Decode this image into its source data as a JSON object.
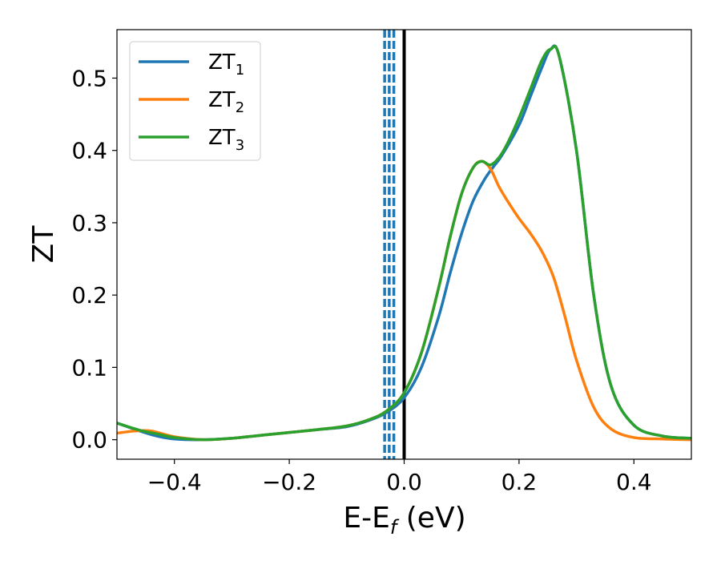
{
  "chart_data": {
    "type": "line",
    "xlabel": "E-E",
    "xlabel_sub": "f",
    "xlabel_unit": " (eV)",
    "ylabel": "ZT",
    "xlim": [
      -0.5,
      0.5
    ],
    "ylim": [
      -0.027,
      0.567
    ],
    "xticks": [
      -0.4,
      -0.2,
      0.0,
      0.2,
      0.4
    ],
    "xtick_labels": [
      "−0.4",
      "−0.2",
      "0.0",
      "0.2",
      "0.4"
    ],
    "yticks": [
      0.0,
      0.1,
      0.2,
      0.3,
      0.4,
      0.5
    ],
    "ytick_labels": [
      "0.0",
      "0.1",
      "0.2",
      "0.3",
      "0.4",
      "0.5"
    ],
    "grid": false,
    "legend_position": "top-left",
    "vertical_lines": [
      {
        "x": 0.0,
        "style": "solid",
        "color": "#000000"
      },
      {
        "x": -0.034,
        "style": "dashed",
        "color": "#1f77b4"
      },
      {
        "x": -0.026,
        "style": "dashed",
        "color": "#1f77b4"
      },
      {
        "x": -0.018,
        "style": "dashed",
        "color": "#1f77b4"
      }
    ],
    "series": [
      {
        "name": "ZT",
        "name_sub": "1",
        "color": "#1f77b4",
        "x": [
          -0.5,
          -0.46,
          -0.43,
          -0.4,
          -0.35,
          -0.3,
          -0.25,
          -0.2,
          -0.15,
          -0.1,
          -0.06,
          -0.03,
          0.0,
          0.03,
          0.06,
          0.08,
          0.1,
          0.12,
          0.14,
          0.155,
          0.17,
          0.2,
          0.22,
          0.24,
          0.255,
          0.27,
          0.3,
          0.33,
          0.36,
          0.4,
          0.45,
          0.5
        ],
        "y": [
          0.023,
          0.012,
          0.005,
          0.001,
          0.0,
          0.002,
          0.006,
          0.01,
          0.014,
          0.018,
          0.027,
          0.038,
          0.058,
          0.1,
          0.17,
          0.23,
          0.285,
          0.33,
          0.36,
          0.377,
          0.393,
          0.435,
          0.475,
          0.515,
          0.54,
          0.53,
          0.4,
          0.2,
          0.075,
          0.02,
          0.005,
          0.002
        ]
      },
      {
        "name": "ZT",
        "name_sub": "2",
        "color": "#ff7f0e",
        "x": [
          -0.5,
          -0.47,
          -0.44,
          -0.4,
          -0.35,
          -0.3,
          -0.25,
          -0.2,
          -0.15,
          -0.1,
          -0.06,
          -0.03,
          0.0,
          0.03,
          0.06,
          0.08,
          0.1,
          0.12,
          0.135,
          0.15,
          0.165,
          0.18,
          0.2,
          0.22,
          0.24,
          0.26,
          0.28,
          0.3,
          0.33,
          0.36,
          0.4,
          0.45,
          0.5
        ],
        "y": [
          0.009,
          0.012,
          0.012,
          0.004,
          0.0,
          0.002,
          0.006,
          0.01,
          0.014,
          0.019,
          0.028,
          0.04,
          0.065,
          0.12,
          0.21,
          0.28,
          0.34,
          0.376,
          0.385,
          0.375,
          0.35,
          0.33,
          0.306,
          0.285,
          0.26,
          0.225,
          0.17,
          0.11,
          0.045,
          0.015,
          0.003,
          0.001,
          0.0
        ]
      },
      {
        "name": "ZT",
        "name_sub": "3",
        "color": "#2ca02c",
        "x": [
          -0.5,
          -0.46,
          -0.43,
          -0.4,
          -0.35,
          -0.3,
          -0.25,
          -0.2,
          -0.15,
          -0.1,
          -0.06,
          -0.03,
          0.0,
          0.03,
          0.06,
          0.08,
          0.1,
          0.12,
          0.135,
          0.15,
          0.165,
          0.18,
          0.2,
          0.22,
          0.24,
          0.255,
          0.27,
          0.3,
          0.33,
          0.36,
          0.4,
          0.45,
          0.5
        ],
        "y": [
          0.023,
          0.013,
          0.008,
          0.003,
          0.0,
          0.002,
          0.006,
          0.01,
          0.014,
          0.019,
          0.028,
          0.04,
          0.065,
          0.12,
          0.21,
          0.28,
          0.34,
          0.376,
          0.385,
          0.38,
          0.39,
          0.41,
          0.445,
          0.485,
          0.525,
          0.54,
          0.53,
          0.4,
          0.2,
          0.075,
          0.02,
          0.005,
          0.002
        ]
      }
    ]
  }
}
